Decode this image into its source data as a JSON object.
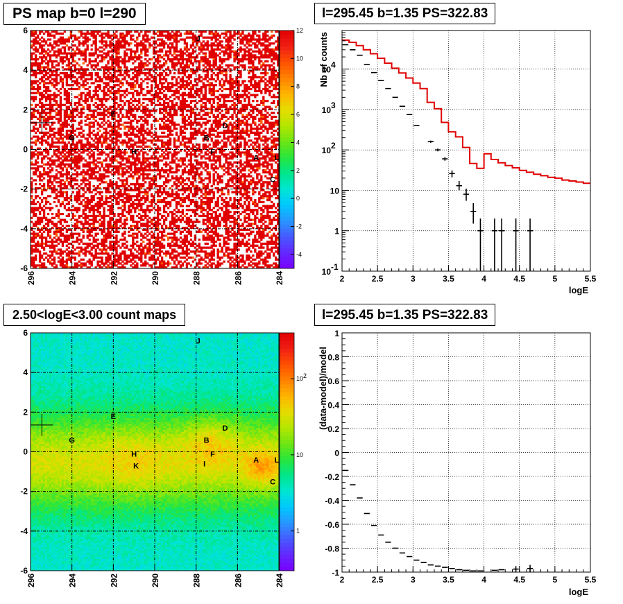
{
  "chart_data": [
    {
      "type": "heatmap",
      "title": "PS map b=0 l=290",
      "x_ticks": [
        "296",
        "294",
        "292",
        "290",
        "288",
        "286",
        "284"
      ],
      "y_ticks": [
        "6",
        "4",
        "2",
        "0",
        "-2",
        "-4",
        "-6"
      ],
      "xlim": [
        296,
        284
      ],
      "ylim": [
        -6,
        6
      ],
      "colorbar": {
        "ticks": [
          "12",
          "10",
          "8",
          "6",
          "4",
          "2",
          "0",
          "-2",
          "-4"
        ],
        "range": [
          -5,
          12
        ]
      },
      "sources": [
        {
          "label": "J",
          "l": 287.9,
          "b": 5.6
        },
        {
          "label": "E",
          "l": 292.0,
          "b": 1.8
        },
        {
          "label": "D",
          "l": 286.6,
          "b": 1.2
        },
        {
          "label": "G",
          "l": 294.0,
          "b": 0.6
        },
        {
          "label": "B",
          "l": 287.5,
          "b": 0.6
        },
        {
          "label": "H",
          "l": 291.0,
          "b": -0.1
        },
        {
          "label": "F",
          "l": 287.2,
          "b": -0.1
        },
        {
          "label": "A",
          "l": 285.1,
          "b": -0.4
        },
        {
          "label": "L",
          "l": 284.1,
          "b": -0.4
        },
        {
          "label": "C",
          "l": 284.3,
          "b": -1.5
        }
      ],
      "marker": {
        "l": 295.45,
        "b": 1.35
      },
      "grid": true
    },
    {
      "type": "line",
      "title": "l=295.45 b=1.35 PS=322.83",
      "xlabel": "logE",
      "ylabel": "Nb of counts",
      "xlim": [
        2,
        5.5
      ],
      "ylim": [
        0.1,
        90000
      ],
      "log_y": true,
      "x_ticks": [
        "2",
        "2.5",
        "3",
        "3.5",
        "4",
        "4.5",
        "5",
        "5.5"
      ],
      "grid": true,
      "model_edges": [
        2.0,
        2.1,
        2.2,
        2.3,
        2.4,
        2.5,
        2.6,
        2.7,
        2.8,
        2.9,
        3.0,
        3.1,
        3.2,
        3.3,
        3.4,
        3.5,
        3.6,
        3.7,
        3.8,
        3.9,
        4.0,
        4.1,
        4.2,
        4.3,
        4.4,
        4.5,
        4.6,
        4.7,
        4.8,
        4.9,
        5.0,
        5.1,
        5.2,
        5.3,
        5.4,
        5.5
      ],
      "model": [
        52000,
        46000,
        38000,
        30000,
        24000,
        18500,
        14000,
        10500,
        8000,
        6000,
        4500,
        3300,
        1500,
        1050,
        480,
        280,
        210,
        115,
        46,
        35,
        80,
        58,
        48,
        41,
        36,
        31,
        28,
        25,
        23,
        21,
        20,
        18,
        17,
        16,
        15
      ],
      "data_points": [
        {
          "x": 2.05,
          "y": 40000,
          "lo": 40000,
          "hi": 40000
        },
        {
          "x": 2.15,
          "y": 30000,
          "lo": 30000,
          "hi": 30000
        },
        {
          "x": 2.25,
          "y": 22000,
          "lo": 22000,
          "hi": 22000
        },
        {
          "x": 2.35,
          "y": 13000,
          "lo": 13000,
          "hi": 13000
        },
        {
          "x": 2.45,
          "y": 8200,
          "lo": 8200,
          "hi": 8200
        },
        {
          "x": 2.55,
          "y": 5200,
          "lo": 5200,
          "hi": 5200
        },
        {
          "x": 2.65,
          "y": 3300,
          "lo": 3300,
          "hi": 3300
        },
        {
          "x": 2.75,
          "y": 2000,
          "lo": 2000,
          "hi": 2000
        },
        {
          "x": 2.85,
          "y": 1200,
          "lo": 1200,
          "hi": 1200
        },
        {
          "x": 2.95,
          "y": 750,
          "lo": 750,
          "hi": 750
        },
        {
          "x": 3.05,
          "y": 400,
          "lo": 400,
          "hi": 400
        },
        {
          "x": 3.25,
          "y": 160,
          "lo": 150,
          "hi": 170
        },
        {
          "x": 3.35,
          "y": 100,
          "lo": 92,
          "hi": 108
        },
        {
          "x": 3.45,
          "y": 60,
          "lo": 54,
          "hi": 66
        },
        {
          "x": 3.55,
          "y": 26,
          "lo": 21,
          "hi": 31
        },
        {
          "x": 3.65,
          "y": 13,
          "lo": 10,
          "hi": 17
        },
        {
          "x": 3.75,
          "y": 8,
          "lo": 5.5,
          "hi": 11
        },
        {
          "x": 3.85,
          "y": 3,
          "lo": 1.5,
          "hi": 4.8
        },
        {
          "x": 3.95,
          "y": 1,
          "lo": 0.1,
          "hi": 2
        },
        {
          "x": 4.15,
          "y": 1,
          "lo": 0.1,
          "hi": 2
        },
        {
          "x": 4.25,
          "y": 1,
          "lo": 0.1,
          "hi": 2
        },
        {
          "x": 4.45,
          "y": 1,
          "lo": 0.1,
          "hi": 2
        },
        {
          "x": 4.65,
          "y": 1,
          "lo": 0.1,
          "hi": 2
        }
      ]
    },
    {
      "type": "heatmap",
      "title": "2.50<logE<3.00 count maps",
      "x_ticks": [
        "296",
        "294",
        "292",
        "290",
        "288",
        "286",
        "284"
      ],
      "y_ticks": [
        "6",
        "4",
        "2",
        "0",
        "-2",
        "-4",
        "-6"
      ],
      "xlim": [
        296,
        284
      ],
      "ylim": [
        -6,
        6
      ],
      "log_z": true,
      "colorbar": {
        "ticks": [
          {
            "label": "10",
            "exp": "2",
            "value": 100
          },
          {
            "label": "10",
            "exp": "",
            "value": 10
          },
          {
            "label": "1",
            "exp": "",
            "value": 1
          }
        ],
        "range": [
          0.3,
          400
        ]
      },
      "sources": [
        {
          "label": "J",
          "l": 287.9,
          "b": 5.6
        },
        {
          "label": "E",
          "l": 292.0,
          "b": 1.8
        },
        {
          "label": "D",
          "l": 286.6,
          "b": 1.2
        },
        {
          "label": "G",
          "l": 294.0,
          "b": 0.6
        },
        {
          "label": "B",
          "l": 287.5,
          "b": 0.6
        },
        {
          "label": "H",
          "l": 291.0,
          "b": -0.1
        },
        {
          "label": "F",
          "l": 287.2,
          "b": -0.1
        },
        {
          "label": "K",
          "l": 290.9,
          "b": -0.7
        },
        {
          "label": "I",
          "l": 287.6,
          "b": -0.6
        },
        {
          "label": "A",
          "l": 285.1,
          "b": -0.4
        },
        {
          "label": "L",
          "l": 284.1,
          "b": -0.4
        },
        {
          "label": "C",
          "l": 284.3,
          "b": -1.5
        }
      ],
      "marker": {
        "l": 295.45,
        "b": 1.35
      },
      "grid": true
    },
    {
      "type": "scatter",
      "title": "l=295.45 b=1.35 PS=322.83",
      "xlabel": "logE",
      "ylabel": "(data-model)/model",
      "xlim": [
        2,
        5.5
      ],
      "ylim": [
        -1,
        1
      ],
      "x_ticks": [
        "2",
        "2.5",
        "3",
        "3.5",
        "4",
        "4.5",
        "5",
        "5.5"
      ],
      "y_ticks": [
        "1",
        "0.8",
        "0.6",
        "0.4",
        "0.2",
        "0",
        "-0.2",
        "-0.4",
        "-0.6",
        "-0.8",
        "-1"
      ],
      "grid": true,
      "points": [
        {
          "x": 2.05,
          "y": -0.15
        },
        {
          "x": 2.15,
          "y": -0.27
        },
        {
          "x": 2.25,
          "y": -0.38
        },
        {
          "x": 2.35,
          "y": -0.51
        },
        {
          "x": 2.45,
          "y": -0.61
        },
        {
          "x": 2.55,
          "y": -0.69
        },
        {
          "x": 2.65,
          "y": -0.75
        },
        {
          "x": 2.75,
          "y": -0.8
        },
        {
          "x": 2.85,
          "y": -0.84
        },
        {
          "x": 2.95,
          "y": -0.87
        },
        {
          "x": 3.05,
          "y": -0.9
        },
        {
          "x": 3.15,
          "y": -0.92
        },
        {
          "x": 3.25,
          "y": -0.94
        },
        {
          "x": 3.35,
          "y": -0.95
        },
        {
          "x": 3.45,
          "y": -0.96
        },
        {
          "x": 3.55,
          "y": -0.97
        },
        {
          "x": 3.65,
          "y": -0.98
        },
        {
          "x": 3.75,
          "y": -0.985
        },
        {
          "x": 3.85,
          "y": -0.99
        },
        {
          "x": 3.95,
          "y": -0.99
        },
        {
          "x": 4.15,
          "y": -0.985
        },
        {
          "x": 4.25,
          "y": -0.98
        },
        {
          "x": 4.45,
          "y": -0.975
        },
        {
          "x": 4.65,
          "y": -0.97
        }
      ],
      "error_points": [
        {
          "x": 4.45,
          "lo": -1.0,
          "hi": -0.95
        },
        {
          "x": 4.65,
          "lo": -1.0,
          "hi": -0.94
        }
      ]
    }
  ]
}
